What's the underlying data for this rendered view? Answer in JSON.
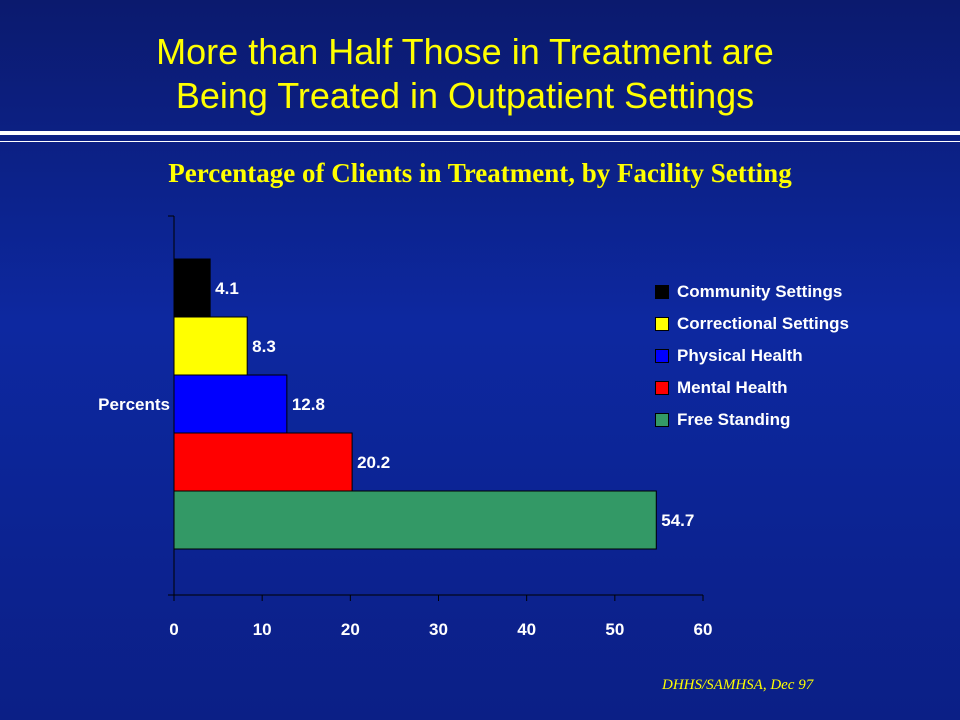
{
  "slide": {
    "title_line1": "More than Half Those in Treatment are",
    "title_line2": "Being Treated in Outpatient Settings",
    "source": "DHHS/SAMHSA, Dec 97"
  },
  "chart_data": {
    "type": "bar",
    "orientation": "horizontal",
    "stacked": false,
    "title": "Percentage of Clients in Treatment, by Facility Setting",
    "ylabel": "Percents",
    "xlabel": "",
    "xlim": [
      0,
      60
    ],
    "xticks": [
      0,
      10,
      20,
      30,
      40,
      50,
      60
    ],
    "grid": false,
    "legend_position": "right",
    "series": [
      {
        "name": "Community Settings",
        "value": 4.1,
        "color": "#000000"
      },
      {
        "name": "Correctional Settings",
        "value": 8.3,
        "color": "#ffff00"
      },
      {
        "name": "Physical Health",
        "value": 12.8,
        "color": "#0000ff"
      },
      {
        "name": "Mental Health",
        "value": 20.2,
        "color": "#ff0000"
      },
      {
        "name": "Free Standing",
        "value": 54.7,
        "color": "#339966"
      }
    ]
  },
  "colors": {
    "title": "#ffff00",
    "text": "#ffffff",
    "background_top": "#0b1a6e",
    "background_mid": "#0d28a0"
  }
}
